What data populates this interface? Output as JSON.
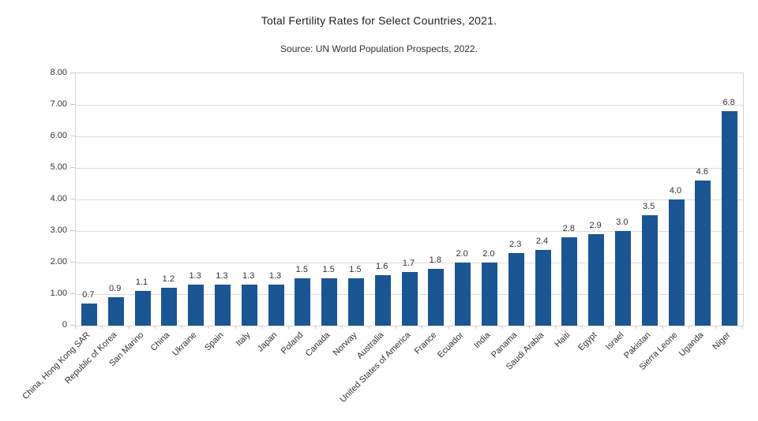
{
  "chart_data": {
    "type": "bar",
    "title": "Total Fertility Rates for Select Countries, 2021.",
    "subtitle": "Source: UN World Population Prospects, 2022.",
    "categories": [
      "China, Hong Kong SAR",
      "Republic of Korea",
      "San Marino",
      "China",
      "Ukraine",
      "Spain",
      "Italy",
      "Japan",
      "Poland",
      "Canada",
      "Norway",
      "Australia",
      "United States of America",
      "France",
      "Ecuador",
      "India",
      "Panama",
      "Saudi Arabia",
      "Haiti",
      "Egypt",
      "Israel",
      "Pakistan",
      "Sierra Leone",
      "Uganda",
      "Niger"
    ],
    "values": [
      0.7,
      0.9,
      1.1,
      1.2,
      1.3,
      1.3,
      1.3,
      1.3,
      1.5,
      1.5,
      1.5,
      1.6,
      1.7,
      1.8,
      2.0,
      2.0,
      2.3,
      2.4,
      2.8,
      2.9,
      3.0,
      3.5,
      4.0,
      4.6,
      6.8
    ],
    "value_labels": [
      "0.7",
      "0.9",
      "1.1",
      "1.2",
      "1.3",
      "1.3",
      "1.3",
      "1.3",
      "1.5",
      "1.5",
      "1.5",
      "1.6",
      "1.7",
      "1.8",
      "2.0",
      "2.0",
      "2.3",
      "2.4",
      "2.8",
      "2.9",
      "3.0",
      "3.5",
      "4.0",
      "4.6",
      "6.8"
    ],
    "xlabel": "",
    "ylabel": "",
    "ylim": [
      0,
      8
    ],
    "y_tick_values": [
      8,
      7,
      6,
      5,
      4,
      3,
      2,
      1,
      0
    ],
    "y_tick_labels": [
      "8.00",
      "7.00",
      "6.00",
      "5.00",
      "4.00",
      "3.00",
      "2.00",
      "1.00",
      "0"
    ],
    "grid": "horizontal",
    "legend": "none",
    "bar_color": "#1B5694",
    "text_color": "#333333",
    "background_color": "#FFFFFF"
  }
}
